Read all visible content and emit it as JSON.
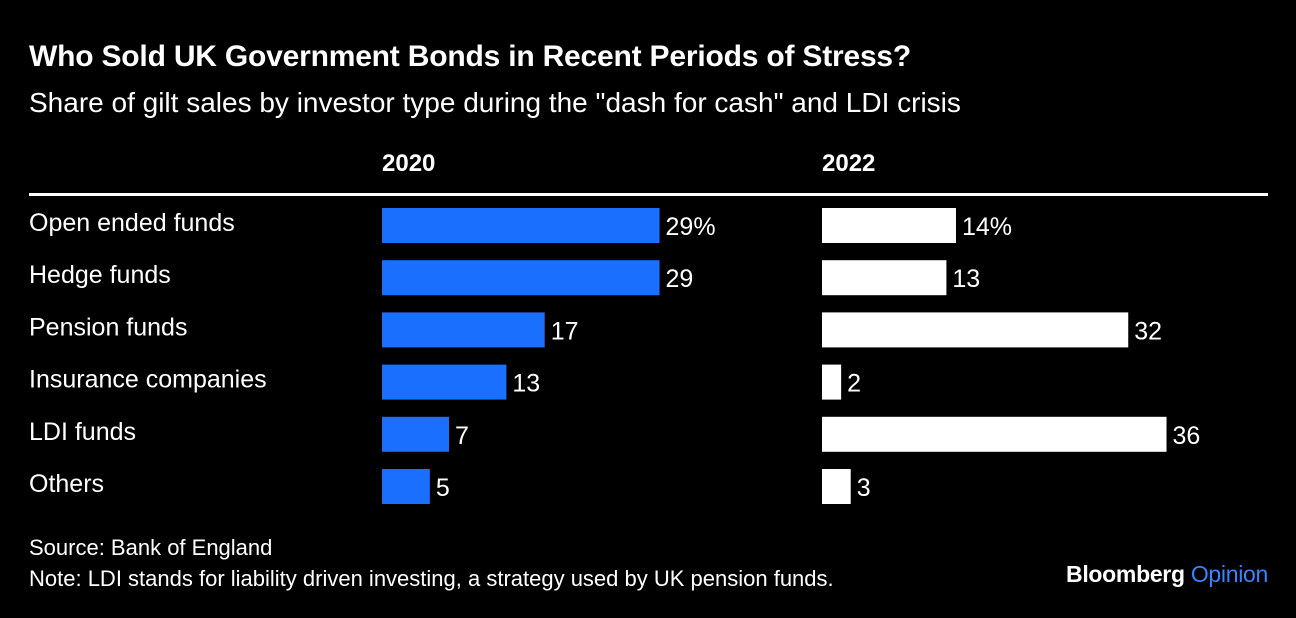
{
  "header": {
    "title": "Who Sold UK Government Bonds in Recent Periods of Stress?",
    "subtitle": "Share of gilt sales by investor type during the \"dash for cash\" and LDI crisis"
  },
  "footer": {
    "source": "Source: Bank of England",
    "note": "Note: LDI stands for liability driven investing, a strategy used by UK pension funds.",
    "brand_main": "Bloomberg",
    "brand_accent": "Opinion"
  },
  "colors": {
    "background": "#000000",
    "series_2020": "#1a6fff",
    "series_2022": "#ffffff",
    "brand_accent": "#3b82ff"
  },
  "chart_data": {
    "type": "bar",
    "orientation": "horizontal",
    "categories": [
      "Open ended funds",
      "Hedge funds",
      "Pension funds",
      "Insurance companies",
      "LDI funds",
      "Others"
    ],
    "series": [
      {
        "name": "2020",
        "values": [
          29,
          29,
          17,
          13,
          7,
          5
        ],
        "labels": [
          "29%",
          "29",
          "17",
          "13",
          "7",
          "5"
        ]
      },
      {
        "name": "2022",
        "values": [
          14,
          13,
          32,
          2,
          36,
          3
        ],
        "labels": [
          "14%",
          "13",
          "32",
          "2",
          "36",
          "3"
        ]
      }
    ],
    "unit": "%",
    "grid": false
  }
}
